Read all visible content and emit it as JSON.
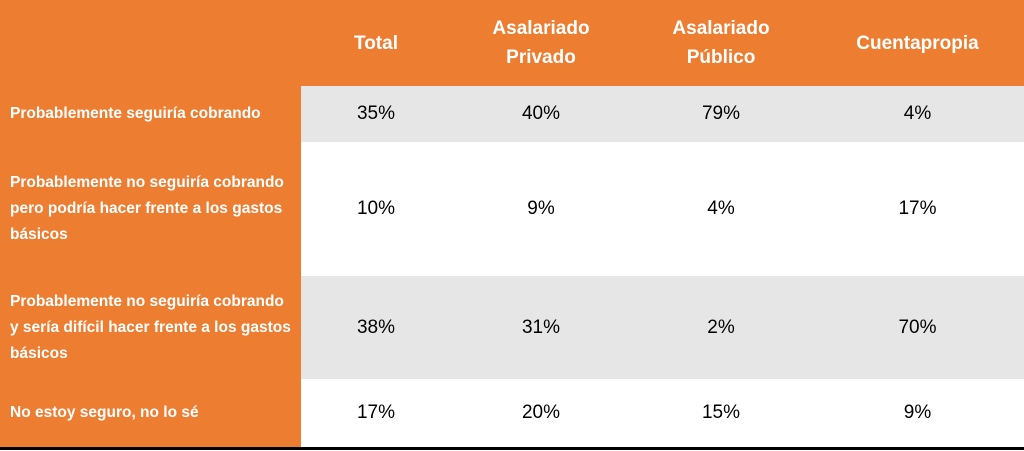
{
  "chart_data": {
    "type": "table",
    "columns": [
      "Total",
      "Asalariado Privado",
      "Asalariado Público",
      "Cuentapropia"
    ],
    "rows": [
      {
        "label": "Probablemente seguiría cobrando",
        "values": [
          "35%",
          "40%",
          "79%",
          "4%"
        ]
      },
      {
        "label": "Probablemente no seguiría cobrando pero podría hacer frente a los gastos básicos",
        "values": [
          "10%",
          "9%",
          "4%",
          "17%"
        ]
      },
      {
        "label": "Probablemente no seguiría cobrando y sería difícil hacer frente a los gastos básicos",
        "values": [
          "38%",
          "31%",
          "2%",
          "70%"
        ]
      },
      {
        "label": "No estoy seguro, no lo sé",
        "values": [
          "17%",
          "20%",
          "15%",
          "9%"
        ]
      }
    ]
  },
  "colors": {
    "header_bg": "#ED7D31",
    "row_shaded": "#E7E6E6",
    "row_plain": "#FFFFFF",
    "text_dark": "#000000",
    "text_light": "#FFFFFF"
  }
}
